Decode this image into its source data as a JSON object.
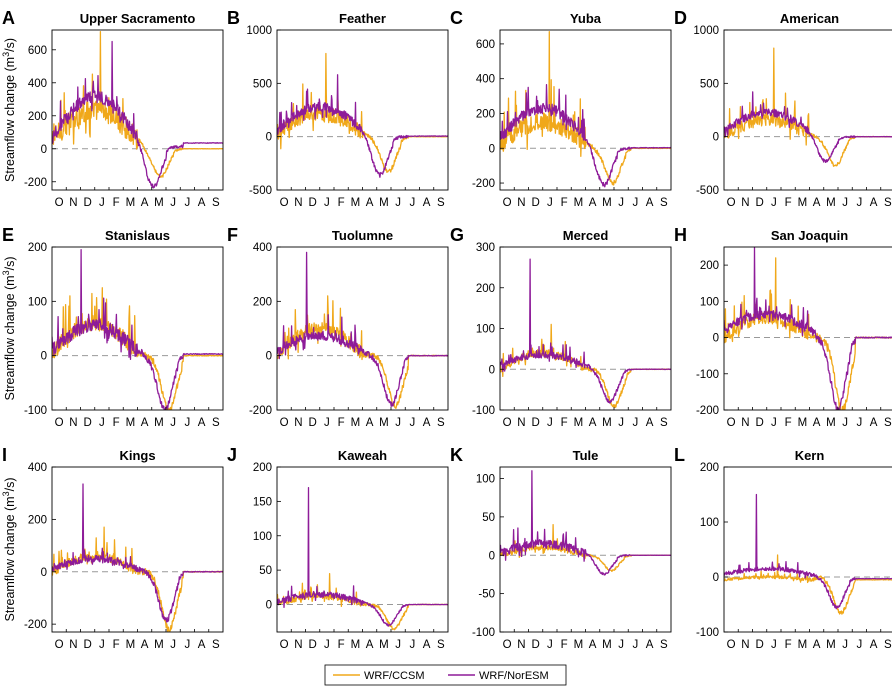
{
  "chart_data": {
    "type": "line",
    "ylabel_prefix": "Streamflow change (m",
    "ylabel_sup": "3",
    "ylabel_suffix": "/s)",
    "month_labels": [
      "O",
      "N",
      "D",
      "J",
      "F",
      "M",
      "A",
      "M",
      "J",
      "J",
      "A",
      "S"
    ],
    "series_names": [
      "WRF/CCSM",
      "WRF/NorESM"
    ],
    "colors": {
      "ccsm": "#F0A81A",
      "noresm": "#8E1C99",
      "zero_line": "#999999"
    },
    "panels": [
      {
        "letter": "A",
        "title": "Upper Sacramento",
        "ylim": [
          -250,
          720
        ],
        "yticks": [
          -200,
          0,
          200,
          400,
          600
        ],
        "ccsm": {
          "peak": 710,
          "base": 55,
          "season": 175,
          "noise": 220,
          "neg_min": -170,
          "neg_month": 7.6,
          "end": 0
        },
        "noresm": {
          "peak": 650,
          "base": 65,
          "season": 250,
          "noise": 120,
          "neg_min": -230,
          "neg_month": 7.1,
          "end": 35
        }
      },
      {
        "letter": "B",
        "title": "Feather",
        "ylim": [
          -500,
          1000
        ],
        "yticks": [
          -500,
          0,
          500,
          1000
        ],
        "ccsm": {
          "peak": 780,
          "base": 30,
          "season": 190,
          "noise": 230,
          "neg_min": -330,
          "neg_month": 7.8,
          "end": 0
        },
        "noresm": {
          "peak": 580,
          "base": 60,
          "season": 220,
          "noise": 150,
          "neg_min": -360,
          "neg_month": 7.2,
          "end": 5
        }
      },
      {
        "letter": "C",
        "title": "Yuba",
        "ylim": [
          -240,
          680
        ],
        "yticks": [
          -200,
          0,
          200,
          400,
          600
        ],
        "ccsm": {
          "peak": 670,
          "base": 30,
          "season": 120,
          "noise": 180,
          "neg_min": -200,
          "neg_month": 7.9,
          "end": 0
        },
        "noresm": {
          "peak": 350,
          "base": 60,
          "season": 170,
          "noise": 110,
          "neg_min": -210,
          "neg_month": 7.3,
          "end": 3
        }
      },
      {
        "letter": "D",
        "title": "American",
        "ylim": [
          -500,
          1000
        ],
        "yticks": [
          -500,
          0,
          500,
          1000
        ],
        "ccsm": {
          "peak": 830,
          "base": 20,
          "season": 140,
          "noise": 200,
          "neg_min": -270,
          "neg_month": 7.8,
          "end": 0
        },
        "noresm": {
          "peak": 420,
          "base": 50,
          "season": 180,
          "noise": 120,
          "neg_min": -230,
          "neg_month": 7.1,
          "end": 0
        }
      },
      {
        "letter": "E",
        "title": "Stanislaus",
        "ylim": [
          -100,
          200
        ],
        "yticks": [
          -100,
          0,
          100,
          200
        ],
        "ccsm": {
          "peak": 125,
          "base": 5,
          "season": 55,
          "noise": 50,
          "neg_min": -100,
          "neg_month": 8.2,
          "end": 0
        },
        "noresm": {
          "peak": 195,
          "base": 10,
          "season": 45,
          "noise": 40,
          "neg_min": -100,
          "neg_month": 7.9,
          "end": 3
        }
      },
      {
        "letter": "F",
        "title": "Tuolumne",
        "ylim": [
          -200,
          400
        ],
        "yticks": [
          -200,
          0,
          200,
          400
        ],
        "ccsm": {
          "peak": 220,
          "base": 5,
          "season": 95,
          "noise": 80,
          "neg_min": -185,
          "neg_month": 8.3,
          "end": 0
        },
        "noresm": {
          "peak": 380,
          "base": 15,
          "season": 60,
          "noise": 60,
          "neg_min": -180,
          "neg_month": 8.0,
          "end": 0
        }
      },
      {
        "letter": "G",
        "title": "Merced",
        "ylim": [
          -100,
          300
        ],
        "yticks": [
          -100,
          0,
          100,
          200,
          300
        ],
        "ccsm": {
          "peak": 110,
          "base": 0,
          "season": 40,
          "noise": 30,
          "neg_min": -90,
          "neg_month": 8.0,
          "end": 0
        },
        "noresm": {
          "peak": 270,
          "base": 10,
          "season": 25,
          "noise": 25,
          "neg_min": -80,
          "neg_month": 7.7,
          "end": 0
        }
      },
      {
        "letter": "H",
        "title": "San Joaquin",
        "ylim": [
          -200,
          250
        ],
        "yticks": [
          -200,
          -100,
          0,
          100,
          200
        ],
        "ccsm": {
          "peak": 220,
          "base": 0,
          "season": 55,
          "noise": 55,
          "neg_min": -200,
          "neg_month": 8.3,
          "end": 0
        },
        "noresm": {
          "peak": 250,
          "base": 20,
          "season": 45,
          "noise": 45,
          "neg_min": -195,
          "neg_month": 8.0,
          "end": 0
        }
      },
      {
        "letter": "I",
        "title": "Kings",
        "ylim": [
          -230,
          400
        ],
        "yticks": [
          -200,
          0,
          200,
          400
        ],
        "ccsm": {
          "peak": 170,
          "base": 0,
          "season": 60,
          "noise": 60,
          "neg_min": -220,
          "neg_month": 8.2,
          "end": 0
        },
        "noresm": {
          "peak": 335,
          "base": 10,
          "season": 40,
          "noise": 40,
          "neg_min": -185,
          "neg_month": 8.0,
          "end": 0
        }
      },
      {
        "letter": "J",
        "title": "Kaweah",
        "ylim": [
          -40,
          200
        ],
        "yticks": [
          0,
          50,
          100,
          150,
          200
        ],
        "ccsm": {
          "peak": 45,
          "base": 0,
          "season": 12,
          "noise": 15,
          "neg_min": -35,
          "neg_month": 8.2,
          "end": 0
        },
        "noresm": {
          "peak": 170,
          "base": 3,
          "season": 12,
          "noise": 15,
          "neg_min": -30,
          "neg_month": 7.8,
          "end": 0
        }
      },
      {
        "letter": "K",
        "title": "Tule",
        "ylim": [
          -100,
          115
        ],
        "yticks": [
          -100,
          -50,
          0,
          50,
          100
        ],
        "ccsm": {
          "peak": 40,
          "base": 0,
          "season": 10,
          "noise": 12,
          "neg_min": -20,
          "neg_month": 7.8,
          "end": 0
        },
        "noresm": {
          "peak": 110,
          "base": 3,
          "season": 12,
          "noise": 18,
          "neg_min": -25,
          "neg_month": 7.3,
          "end": 0
        }
      },
      {
        "letter": "L",
        "title": "Kern",
        "ylim": [
          -100,
          200
        ],
        "yticks": [
          -100,
          0,
          100,
          200
        ],
        "ccsm": {
          "peak": 40,
          "base": -5,
          "season": 5,
          "noise": 8,
          "neg_min": -65,
          "neg_month": 8.2,
          "end": -5
        },
        "noresm": {
          "peak": 150,
          "base": 5,
          "season": 10,
          "noise": 12,
          "neg_min": -55,
          "neg_month": 7.9,
          "end": -3
        }
      }
    ]
  }
}
